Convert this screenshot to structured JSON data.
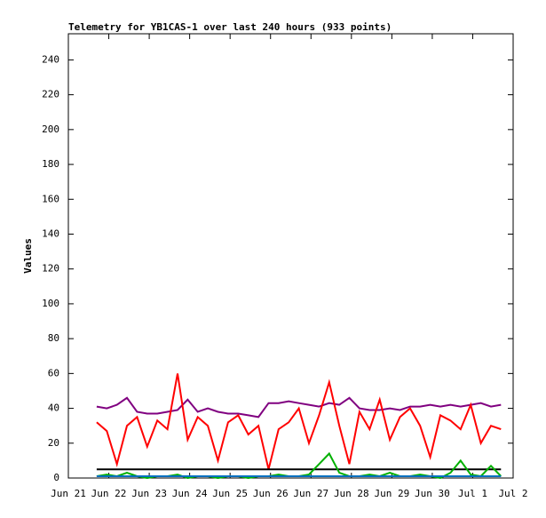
{
  "chart_data": {
    "type": "line",
    "title": "Telemetry for YB1CAS-1 over last 240 hours (933 points)",
    "y_label": "Values",
    "x": [
      0.7,
      0.95,
      1.2,
      1.45,
      1.7,
      1.95,
      2.2,
      2.45,
      2.7,
      2.95,
      3.2,
      3.45,
      3.7,
      3.95,
      4.2,
      4.45,
      4.7,
      4.95,
      5.2,
      5.45,
      5.7,
      5.95,
      6.2,
      6.45,
      6.7,
      6.95,
      7.2,
      7.45,
      7.7,
      7.95,
      8.2,
      8.45,
      8.7,
      8.95,
      9.2,
      9.45,
      9.7,
      9.95,
      10.2,
      10.45,
      10.7
    ],
    "series": [
      {
        "color": "#800080",
        "values": [
          41,
          40,
          42,
          46,
          38,
          37,
          37,
          38,
          39,
          45,
          38,
          40,
          38,
          37,
          37,
          36,
          35,
          43,
          43,
          44,
          43,
          42,
          41,
          43,
          42,
          46,
          40,
          39,
          39,
          40,
          39,
          41,
          41,
          42,
          41,
          42,
          41,
          42,
          43,
          41,
          42
        ]
      },
      {
        "color": "#ff0000",
        "values": [
          32,
          27,
          8,
          30,
          35,
          18,
          33,
          28,
          60,
          22,
          35,
          30,
          10,
          32,
          36,
          25,
          30,
          5,
          28,
          32,
          40,
          20,
          36,
          55,
          30,
          8,
          38,
          28,
          45,
          22,
          35,
          40,
          30,
          12,
          36,
          33,
          28,
          42,
          20,
          30,
          28
        ]
      },
      {
        "color": "#000000",
        "values": [
          5,
          5,
          5,
          5,
          5,
          5,
          5,
          5,
          5,
          5,
          5,
          5,
          5,
          5,
          5,
          5,
          5,
          5,
          5,
          5,
          5,
          5,
          5,
          5,
          5,
          5,
          5,
          5,
          5,
          5,
          5,
          5,
          5,
          5,
          5,
          5,
          5,
          5,
          5,
          5,
          5
        ]
      },
      {
        "color": "#00b000",
        "values": [
          1,
          2,
          1,
          3,
          1,
          0,
          1,
          1,
          2,
          0,
          1,
          1,
          0,
          1,
          1,
          0,
          1,
          1,
          2,
          1,
          1,
          2,
          8,
          14,
          3,
          1,
          1,
          2,
          1,
          3,
          1,
          1,
          2,
          1,
          0,
          3,
          10,
          2,
          1,
          7,
          1
        ]
      },
      {
        "color": "#0070c0",
        "values": [
          1,
          1,
          1,
          1,
          1,
          1,
          1,
          1,
          1,
          1,
          1,
          1,
          1,
          1,
          1,
          1,
          1,
          1,
          1,
          1,
          1,
          1,
          1,
          1,
          1,
          1,
          1,
          1,
          1,
          1,
          1,
          1,
          1,
          1,
          1,
          1,
          1,
          1,
          1,
          1,
          1
        ]
      }
    ],
    "xlim": [
      0,
      11
    ],
    "xticks": [
      {
        "value": 0,
        "label": "Jun 21"
      },
      {
        "value": 1,
        "label": "Jun 22"
      },
      {
        "value": 2,
        "label": "Jun 23"
      },
      {
        "value": 3,
        "label": "Jun 24"
      },
      {
        "value": 4,
        "label": "Jun 25"
      },
      {
        "value": 5,
        "label": "Jun 26"
      },
      {
        "value": 6,
        "label": "Jun 27"
      },
      {
        "value": 7,
        "label": "Jun 28"
      },
      {
        "value": 8,
        "label": "Jun 29"
      },
      {
        "value": 9,
        "label": "Jun 30"
      },
      {
        "value": 10,
        "label": "Jul 1"
      },
      {
        "value": 11,
        "label": "Jul 2"
      }
    ],
    "ylim": [
      0,
      255
    ],
    "yticks": [
      0,
      20,
      40,
      60,
      80,
      100,
      120,
      140,
      160,
      180,
      200,
      220,
      240
    ]
  }
}
